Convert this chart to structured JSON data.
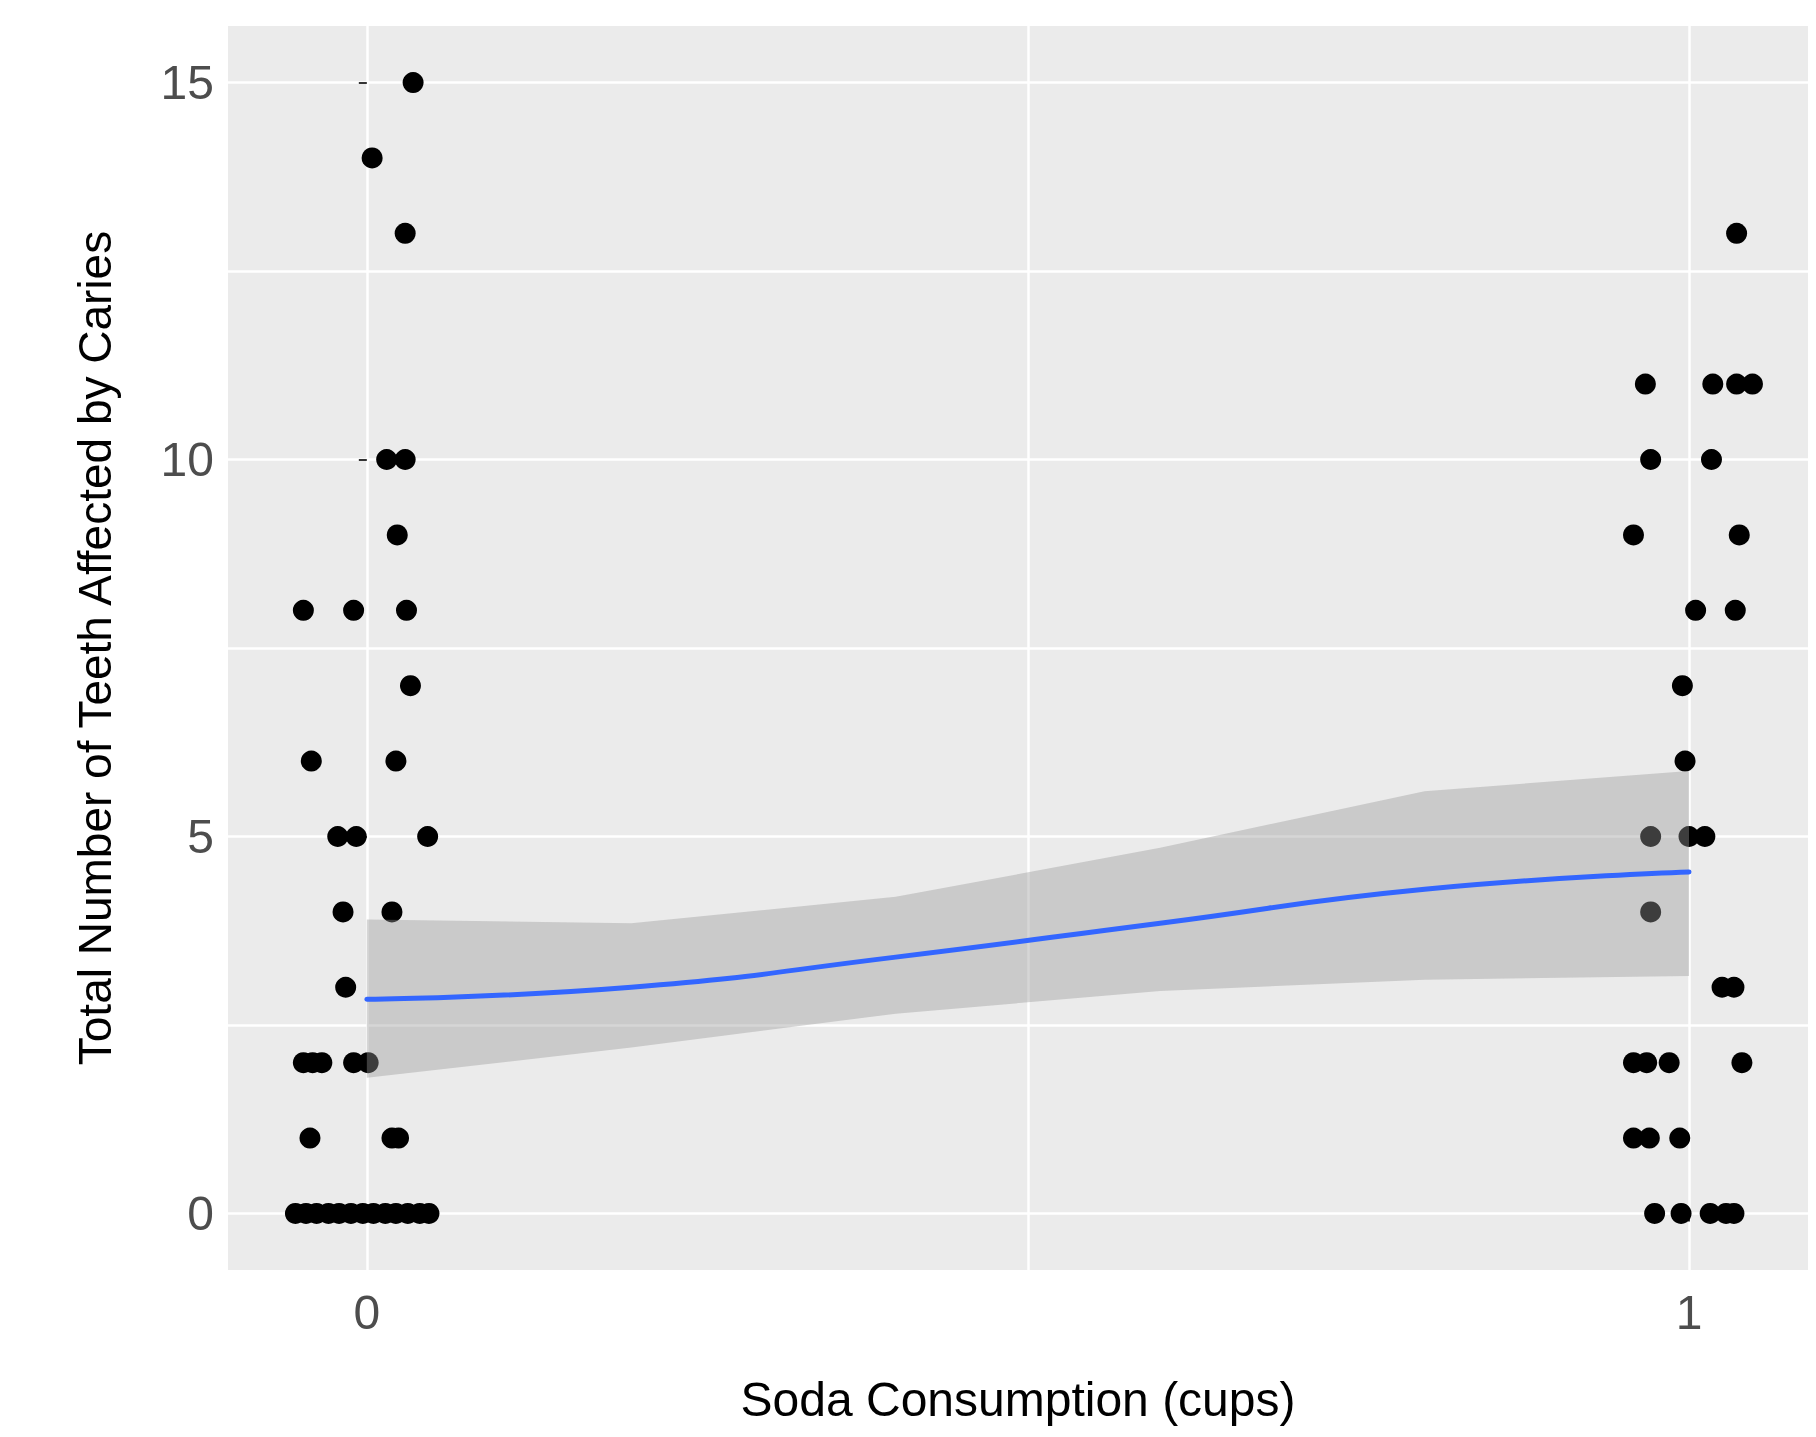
{
  "chart_data": {
    "type": "scatter",
    "xlabel": "Soda Consumption (cups)",
    "ylabel": "Total Number of Teeth Affected by Caries",
    "xlim": [
      -0.105,
      1.09
    ],
    "ylim": [
      -0.75,
      15.75
    ],
    "xticks": [
      0,
      {
        "value": 0.5,
        "label": null
      },
      1
    ],
    "yticks": [
      0,
      {
        "value": 2.5,
        "label": null
      },
      5,
      {
        "value": 7.5,
        "label": null
      },
      10,
      {
        "value": 12.5,
        "label": null
      },
      15
    ],
    "grid": true,
    "marker": "circle",
    "series": [
      {
        "color": "#000000",
        "x": [
          0.035,
          0.004,
          0.029,
          0.015,
          0.029,
          0.023,
          -0.048,
          -0.01,
          0.03,
          0.033,
          -0.042,
          0.022,
          -0.022,
          -0.008,
          0.046,
          -0.018,
          0.019,
          -0.016,
          -0.048,
          -0.041,
          -0.034,
          -0.01,
          0.001,
          -0.043,
          0.019,
          0.024,
          -0.054,
          -0.046,
          -0.038,
          -0.029,
          -0.021,
          -0.012,
          -0.003,
          0.005,
          0.014,
          0.022,
          0.031,
          0.04,
          0.047,
          1.036,
          0.967,
          1.018,
          1.036,
          1.048,
          0.971,
          1.017,
          0.958,
          1.038,
          1.005,
          1.035,
          0.995,
          0.997,
          0.971,
          1.0,
          1.012,
          0.971,
          1.025,
          1.034,
          0.958,
          0.968,
          0.985,
          1.04,
          0.958,
          0.97,
          0.993,
          0.974,
          0.994,
          1.016,
          1.028,
          1.034
        ],
        "values": [
          15,
          14,
          13,
          10,
          10,
          9,
          8,
          8,
          8,
          7,
          6,
          6,
          5,
          5,
          5,
          4,
          4,
          3,
          2,
          2,
          2,
          2,
          2,
          1,
          1,
          1,
          0,
          0,
          0,
          0,
          0,
          0,
          0,
          0,
          0,
          0,
          0,
          0,
          0,
          13,
          11,
          11,
          11,
          11,
          10,
          10,
          9,
          9,
          8,
          8,
          7,
          6,
          5,
          5,
          5,
          4,
          3,
          3,
          2,
          2,
          2,
          2,
          1,
          1,
          1,
          0,
          0,
          0,
          0,
          0
        ]
      },
      {
        "type": "line",
        "color": "#3366ff",
        "line_style": "solid",
        "marker": "none",
        "x": [
          0,
          0.2,
          0.4,
          0.6,
          0.8,
          1
        ],
        "values": [
          2.84,
          3.0,
          3.4,
          3.85,
          4.3,
          4.53
        ],
        "lower": [
          1.8,
          2.2,
          2.65,
          2.95,
          3.1,
          3.15
        ],
        "upper": [
          3.9,
          3.85,
          4.2,
          4.85,
          5.6,
          5.87
        ]
      }
    ]
  }
}
